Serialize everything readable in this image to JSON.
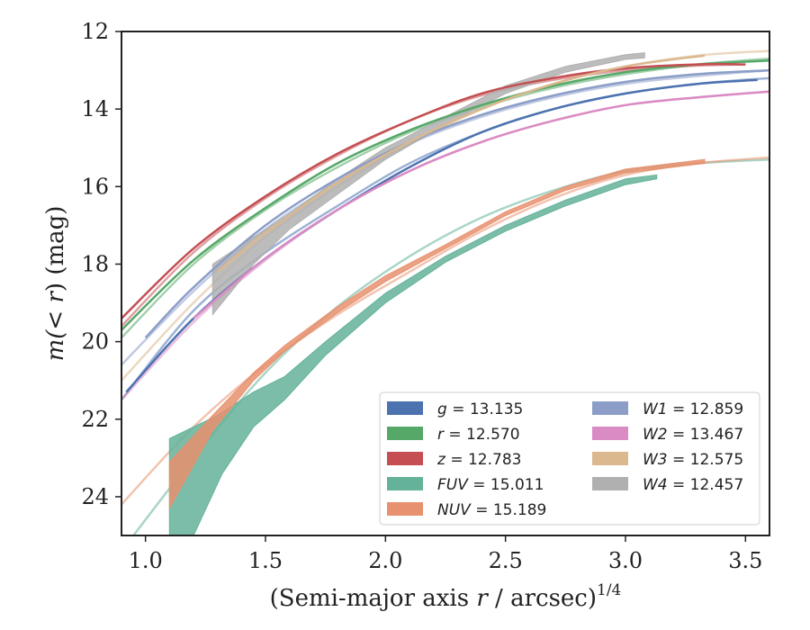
{
  "chart_data": {
    "type": "line",
    "xlabel": "(Semi-major axis r / arcsec)",
    "xlabel_italic": "r",
    "xlabel_pre": "(Semi-major axis ",
    "xlabel_post": " / arcsec)",
    "xlabel_sup": "1/4",
    "ylabel_pre": "m(",
    "ylabel_mid": "< r",
    "ylabel_post": ") (mag)",
    "xlim": [
      0.9,
      3.6
    ],
    "ylim": [
      25,
      12
    ],
    "y_inverted": true,
    "xticks": [
      1.0,
      1.5,
      2.0,
      2.5,
      3.0,
      3.5
    ],
    "xtick_labels": [
      "1.0",
      "1.5",
      "2.0",
      "2.5",
      "3.0",
      "3.5"
    ],
    "yticks": [
      12,
      14,
      16,
      18,
      20,
      22,
      24
    ],
    "ytick_labels": [
      "12",
      "14",
      "16",
      "18",
      "20",
      "22",
      "24"
    ],
    "grid": false,
    "legend_position": "lower-right",
    "series": [
      {
        "key": "g",
        "label": "g = 13.135",
        "color": "#4c72b0",
        "width": 2,
        "extrap": [
          [
            0.9,
            21.5
          ],
          [
            1.2,
            19.2
          ],
          [
            1.5,
            17.7
          ],
          [
            1.8,
            16.5
          ],
          [
            2.1,
            15.4
          ],
          [
            2.4,
            14.6
          ],
          [
            2.7,
            14.0
          ],
          [
            3.0,
            13.6
          ],
          [
            3.3,
            13.35
          ],
          [
            3.6,
            13.2
          ]
        ],
        "measured": [
          [
            0.92,
            21.3
          ],
          [
            1.2,
            19.4
          ],
          [
            1.5,
            17.85
          ],
          [
            1.8,
            16.6
          ],
          [
            2.1,
            15.5
          ],
          [
            2.4,
            14.6
          ],
          [
            2.7,
            14.0
          ],
          [
            3.0,
            13.6
          ],
          [
            3.3,
            13.35
          ],
          [
            3.55,
            13.25
          ]
        ]
      },
      {
        "key": "r",
        "label": "r = 12.570",
        "color": "#55a868",
        "width": 2,
        "extrap": [
          [
            0.9,
            19.9
          ],
          [
            1.2,
            18.0
          ],
          [
            1.5,
            16.6
          ],
          [
            1.8,
            15.5
          ],
          [
            2.1,
            14.6
          ],
          [
            2.4,
            13.95
          ],
          [
            2.7,
            13.45
          ],
          [
            3.0,
            13.1
          ],
          [
            3.3,
            12.85
          ],
          [
            3.6,
            12.7
          ]
        ],
        "measured": [
          [
            0.9,
            19.7
          ],
          [
            1.2,
            17.9
          ],
          [
            1.5,
            16.55
          ],
          [
            1.8,
            15.4
          ],
          [
            2.1,
            14.55
          ],
          [
            2.4,
            13.9
          ],
          [
            2.7,
            13.4
          ],
          [
            3.0,
            13.05
          ],
          [
            3.3,
            12.85
          ],
          [
            3.6,
            12.75
          ]
        ]
      },
      {
        "key": "z",
        "label": "z = 12.783",
        "color": "#c44e52",
        "width": 2,
        "extrap": [
          [
            0.9,
            19.6
          ],
          [
            1.2,
            17.7
          ],
          [
            1.5,
            16.3
          ],
          [
            1.8,
            15.2
          ],
          [
            2.1,
            14.3
          ],
          [
            2.4,
            13.65
          ],
          [
            2.7,
            13.25
          ],
          [
            3.0,
            13.0
          ],
          [
            3.3,
            12.88
          ],
          [
            3.5,
            12.85
          ]
        ],
        "measured": [
          [
            0.9,
            19.4
          ],
          [
            1.2,
            17.6
          ],
          [
            1.5,
            16.25
          ],
          [
            1.8,
            15.15
          ],
          [
            2.1,
            14.3
          ],
          [
            2.4,
            13.6
          ],
          [
            2.7,
            13.2
          ],
          [
            3.0,
            12.95
          ],
          [
            3.3,
            12.85
          ],
          [
            3.5,
            12.85
          ]
        ]
      },
      {
        "key": "FUV",
        "label": "FUV = 15.011",
        "color": "#64b299",
        "width": 2,
        "extrap": [
          [
            0.95,
            25.0
          ],
          [
            1.2,
            23.0
          ],
          [
            1.5,
            20.8
          ],
          [
            1.8,
            19.1
          ],
          [
            2.1,
            17.8
          ],
          [
            2.4,
            16.8
          ],
          [
            2.7,
            16.1
          ],
          [
            3.0,
            15.6
          ],
          [
            3.3,
            15.4
          ],
          [
            3.6,
            15.3
          ]
        ],
        "band_upper": [
          [
            1.1,
            22.5
          ],
          [
            1.3,
            21.9
          ],
          [
            1.45,
            21.3
          ],
          [
            1.58,
            20.9
          ],
          [
            1.75,
            20.0
          ],
          [
            2.0,
            18.75
          ],
          [
            2.25,
            17.8
          ],
          [
            2.5,
            17.0
          ],
          [
            2.75,
            16.35
          ],
          [
            3.0,
            15.8
          ],
          [
            3.13,
            15.7
          ]
        ],
        "band_lower": [
          [
            1.1,
            25.0
          ],
          [
            1.2,
            25.0
          ],
          [
            1.32,
            23.4
          ],
          [
            1.45,
            22.2
          ],
          [
            1.58,
            21.5
          ],
          [
            1.75,
            20.35
          ],
          [
            2.0,
            19.0
          ],
          [
            2.25,
            17.95
          ],
          [
            2.5,
            17.15
          ],
          [
            2.75,
            16.5
          ],
          [
            3.0,
            15.95
          ],
          [
            3.13,
            15.8
          ]
        ]
      },
      {
        "key": "NUV",
        "label": "NUV = 15.189",
        "color": "#e8916e",
        "width": 2,
        "extrap": [
          [
            0.9,
            24.2
          ],
          [
            1.2,
            22.2
          ],
          [
            1.5,
            20.6
          ],
          [
            1.8,
            19.3
          ],
          [
            2.1,
            18.2
          ],
          [
            2.4,
            17.15
          ],
          [
            2.7,
            16.3
          ],
          [
            3.0,
            15.7
          ],
          [
            3.3,
            15.4
          ],
          [
            3.6,
            15.25
          ]
        ],
        "band_upper": [
          [
            1.1,
            23.1
          ],
          [
            1.28,
            21.9
          ],
          [
            1.45,
            20.8
          ],
          [
            1.58,
            20.1
          ],
          [
            1.8,
            19.1
          ],
          [
            2.0,
            18.3
          ],
          [
            2.25,
            17.5
          ],
          [
            2.5,
            16.65
          ],
          [
            2.75,
            16.0
          ],
          [
            3.0,
            15.55
          ],
          [
            3.33,
            15.3
          ]
        ],
        "band_lower": [
          [
            1.1,
            24.3
          ],
          [
            1.28,
            22.3
          ],
          [
            1.45,
            21.0
          ],
          [
            1.58,
            20.25
          ],
          [
            1.8,
            19.25
          ],
          [
            2.0,
            18.45
          ],
          [
            2.25,
            17.6
          ],
          [
            2.5,
            16.75
          ],
          [
            2.75,
            16.1
          ],
          [
            3.0,
            15.65
          ],
          [
            3.33,
            15.4
          ]
        ]
      },
      {
        "key": "W1",
        "label": "W1 = 12.859",
        "color": "#8c9ec8",
        "width": 2,
        "extrap": [
          [
            0.9,
            20.6
          ],
          [
            1.2,
            18.7
          ],
          [
            1.5,
            17.1
          ],
          [
            1.8,
            15.9
          ],
          [
            2.1,
            14.9
          ],
          [
            2.4,
            14.2
          ],
          [
            2.7,
            13.7
          ],
          [
            3.0,
            13.35
          ],
          [
            3.3,
            13.15
          ],
          [
            3.6,
            13.0
          ]
        ],
        "measured": [
          [
            1.0,
            19.9
          ],
          [
            1.2,
            18.6
          ],
          [
            1.5,
            17.0
          ],
          [
            1.8,
            15.8
          ],
          [
            2.1,
            14.85
          ],
          [
            2.4,
            14.15
          ],
          [
            2.7,
            13.65
          ],
          [
            3.0,
            13.3
          ],
          [
            3.3,
            13.1
          ],
          [
            3.6,
            13.0
          ]
        ]
      },
      {
        "key": "W2",
        "label": "W2 = 13.467",
        "color": "#da8bc3",
        "width": 2,
        "extrap": [
          [
            0.9,
            21.5
          ],
          [
            1.2,
            19.5
          ],
          [
            1.5,
            17.9
          ],
          [
            1.8,
            16.6
          ],
          [
            2.1,
            15.6
          ],
          [
            2.4,
            14.85
          ],
          [
            2.7,
            14.3
          ],
          [
            3.0,
            13.9
          ],
          [
            3.3,
            13.7
          ],
          [
            3.6,
            13.55
          ]
        ],
        "measured": [
          [
            1.2,
            19.4
          ],
          [
            1.5,
            17.85
          ],
          [
            1.8,
            16.6
          ],
          [
            2.1,
            15.6
          ],
          [
            2.4,
            14.85
          ],
          [
            2.7,
            14.3
          ],
          [
            3.0,
            13.9
          ],
          [
            3.3,
            13.7
          ],
          [
            3.6,
            13.55
          ]
        ]
      },
      {
        "key": "W3",
        "label": "W3 = 12.575",
        "color": "#dbb88e",
        "width": 2,
        "extrap": [
          [
            0.9,
            21.0
          ],
          [
            1.2,
            19.0
          ],
          [
            1.5,
            17.3
          ],
          [
            1.8,
            16.0
          ],
          [
            2.1,
            14.9
          ],
          [
            2.4,
            14.0
          ],
          [
            2.7,
            13.35
          ],
          [
            3.0,
            12.9
          ],
          [
            3.3,
            12.62
          ],
          [
            3.6,
            12.5
          ]
        ],
        "measured": [
          [
            1.3,
            18.2
          ],
          [
            1.5,
            17.2
          ],
          [
            1.8,
            15.9
          ],
          [
            2.1,
            14.85
          ],
          [
            2.4,
            14.0
          ],
          [
            2.7,
            13.35
          ],
          [
            3.0,
            12.9
          ],
          [
            3.33,
            12.62
          ]
        ]
      },
      {
        "key": "W4",
        "label": "W4 = 12.457",
        "color": "#b0b0b0",
        "width": 2,
        "band_upper": [
          [
            1.28,
            18.0
          ],
          [
            1.45,
            17.3
          ],
          [
            1.6,
            16.7
          ],
          [
            1.8,
            15.8
          ],
          [
            2.0,
            15.0
          ],
          [
            2.25,
            14.2
          ],
          [
            2.5,
            13.4
          ],
          [
            2.75,
            12.9
          ],
          [
            3.0,
            12.6
          ],
          [
            3.08,
            12.55
          ]
        ],
        "band_lower": [
          [
            1.28,
            19.3
          ],
          [
            1.45,
            18.0
          ],
          [
            1.6,
            17.1
          ],
          [
            1.8,
            16.2
          ],
          [
            2.0,
            15.3
          ],
          [
            2.25,
            14.4
          ],
          [
            2.5,
            13.6
          ],
          [
            2.75,
            13.05
          ],
          [
            3.0,
            12.72
          ],
          [
            3.08,
            12.68
          ]
        ]
      }
    ]
  }
}
